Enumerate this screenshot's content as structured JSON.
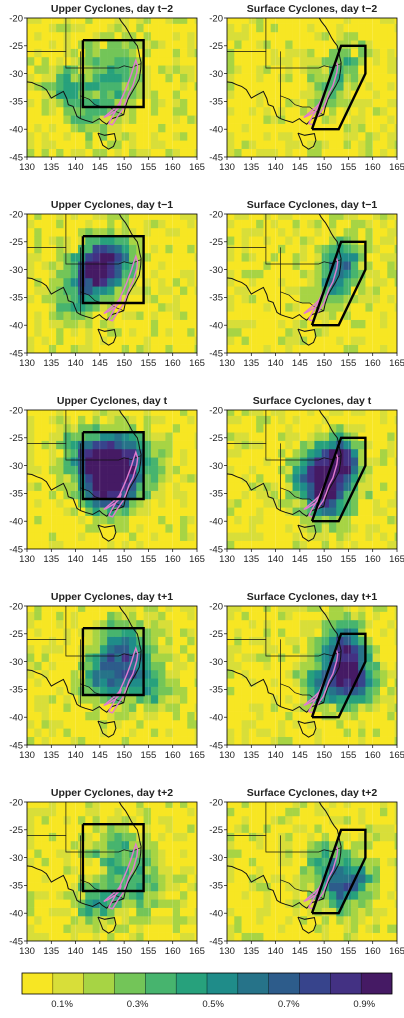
{
  "figure": {
    "colorbar": {
      "colors": [
        "#f7e623",
        "#d8de39",
        "#a7d444",
        "#73c558",
        "#47b46e",
        "#27a17c",
        "#1f8c89",
        "#267389",
        "#2d5c8b",
        "#37448c",
        "#433183",
        "#451a64"
      ],
      "tick_labels": [
        "0.1%",
        "0.3%",
        "0.5%",
        "0.7%",
        "0.9%"
      ]
    }
  },
  "chart_data": [
    {
      "panel": "upper-t-2",
      "title": "Upper Cyclones, day t−2",
      "type": "heatmap",
      "xlim": [
        130,
        165
      ],
      "ylim": [
        -45,
        -20
      ],
      "xticks": [
        130,
        135,
        140,
        145,
        150,
        155,
        160,
        165
      ],
      "yticks": [
        -20,
        -25,
        -30,
        -35,
        -40,
        -45
      ],
      "intensity": "low-scattered",
      "box": "upper"
    },
    {
      "panel": "surface-t-2",
      "title": "Surface Cyclones, day t−2",
      "type": "heatmap",
      "xlim": [
        130,
        165
      ],
      "ylim": [
        -45,
        -20
      ],
      "xticks": [
        130,
        135,
        140,
        145,
        150,
        155,
        160,
        165
      ],
      "yticks": [
        -20,
        -25,
        -30,
        -35,
        -40,
        -45
      ],
      "intensity": "low-coastal",
      "box": "surface"
    },
    {
      "panel": "upper-t-1",
      "title": "Upper Cyclones, day t−1",
      "type": "heatmap",
      "xlim": [
        130,
        165
      ],
      "ylim": [
        -45,
        -20
      ],
      "xticks": [
        130,
        135,
        140,
        145,
        150,
        155,
        160,
        165
      ],
      "yticks": [
        -20,
        -25,
        -30,
        -35,
        -40,
        -45
      ],
      "intensity": "medium-west",
      "box": "upper"
    },
    {
      "panel": "surface-t-1",
      "title": "Surface Cyclones, day t−1",
      "type": "heatmap",
      "xlim": [
        130,
        165
      ],
      "ylim": [
        -45,
        -20
      ],
      "xticks": [
        130,
        135,
        140,
        145,
        150,
        155,
        160,
        165
      ],
      "yticks": [
        -20,
        -25,
        -30,
        -35,
        -40,
        -45
      ],
      "intensity": "medium-coastal",
      "box": "surface"
    },
    {
      "panel": "upper-t",
      "title": "Upper Cyclones, day t",
      "type": "heatmap",
      "xlim": [
        130,
        165
      ],
      "ylim": [
        -45,
        -20
      ],
      "xticks": [
        130,
        135,
        140,
        145,
        150,
        155,
        160,
        165
      ],
      "yticks": [
        -20,
        -25,
        -30,
        -35,
        -40,
        -45
      ],
      "intensity": "high-box",
      "box": "upper"
    },
    {
      "panel": "surface-t",
      "title": "Surface Cyclones, day t",
      "type": "heatmap",
      "xlim": [
        130,
        165
      ],
      "ylim": [
        -45,
        -20
      ],
      "xticks": [
        130,
        135,
        140,
        145,
        150,
        155,
        160,
        165
      ],
      "yticks": [
        -20,
        -25,
        -30,
        -35,
        -40,
        -45
      ],
      "intensity": "high-coastal",
      "box": "surface"
    },
    {
      "panel": "upper-t+1",
      "title": "Upper Cyclones, day t+1",
      "type": "heatmap",
      "xlim": [
        130,
        165
      ],
      "ylim": [
        -45,
        -20
      ],
      "xticks": [
        130,
        135,
        140,
        145,
        150,
        155,
        160,
        165
      ],
      "yticks": [
        -20,
        -25,
        -30,
        -35,
        -40,
        -45
      ],
      "intensity": "medium-east",
      "box": "upper"
    },
    {
      "panel": "surface-t+1",
      "title": "Surface Cyclones, day t+1",
      "type": "heatmap",
      "xlim": [
        130,
        165
      ],
      "ylim": [
        -45,
        -20
      ],
      "xticks": [
        130,
        135,
        140,
        145,
        150,
        155,
        160,
        165
      ],
      "yticks": [
        -20,
        -25,
        -30,
        -35,
        -40,
        -45
      ],
      "intensity": "high-sea",
      "box": "surface"
    },
    {
      "panel": "upper-t+2",
      "title": "Upper Cyclones, day t+2",
      "type": "heatmap",
      "xlim": [
        130,
        165
      ],
      "ylim": [
        -45,
        -20
      ],
      "xticks": [
        130,
        135,
        140,
        145,
        150,
        155,
        160,
        165
      ],
      "yticks": [
        -20,
        -25,
        -30,
        -35,
        -40,
        -45
      ],
      "intensity": "low-east",
      "box": "upper"
    },
    {
      "panel": "surface-t+2",
      "title": "Surface Cyclones, day t+2",
      "type": "heatmap",
      "xlim": [
        130,
        165
      ],
      "ylim": [
        -45,
        -20
      ],
      "xticks": [
        130,
        135,
        140,
        145,
        150,
        155,
        160,
        165
      ],
      "yticks": [
        -20,
        -25,
        -30,
        -35,
        -40,
        -45
      ],
      "intensity": "low-sea",
      "box": "surface"
    }
  ]
}
